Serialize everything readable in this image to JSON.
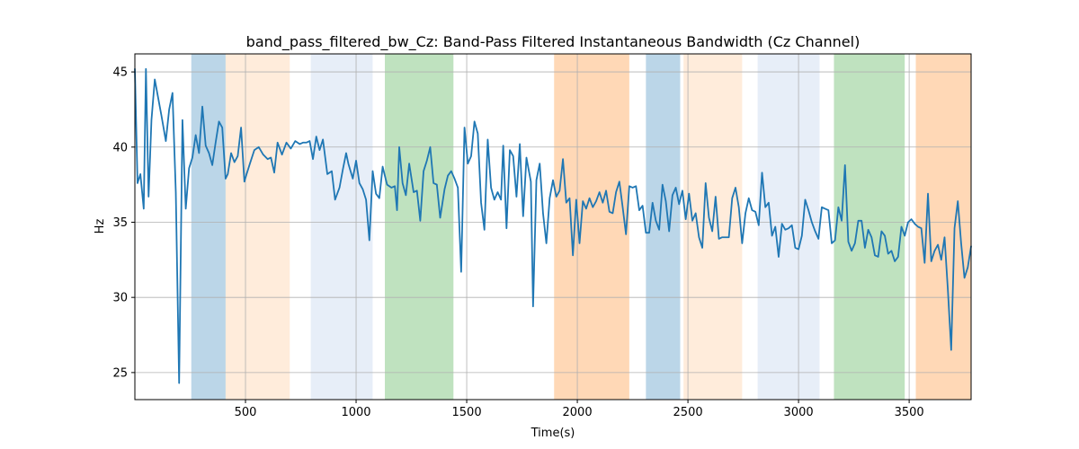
{
  "chart_data": {
    "type": "line",
    "title": "band_pass_filtered_bw_Cz: Band-Pass Filtered Instantaneous Bandwidth (Cz Channel)",
    "xlabel": "Time(s)",
    "ylabel": "Hz",
    "xlim": [
      0,
      3780
    ],
    "ylim": [
      23.2,
      46.2
    ],
    "xticks": [
      500,
      1000,
      1500,
      2000,
      2500,
      3000,
      3500
    ],
    "yticks": [
      25,
      30,
      35,
      40,
      45
    ],
    "grid": true,
    "line_color": "#1f77b4",
    "bands": [
      {
        "start": 255,
        "end": 410,
        "color": "#1f77b4",
        "alpha": 0.3
      },
      {
        "start": 410,
        "end": 700,
        "color": "#ff7f0e",
        "alpha": 0.15
      },
      {
        "start": 795,
        "end": 1075,
        "color": "#aec7e8",
        "alpha": 0.3
      },
      {
        "start": 1130,
        "end": 1440,
        "color": "#2ca02c",
        "alpha": 0.3
      },
      {
        "start": 1895,
        "end": 2235,
        "color": "#ff7f0e",
        "alpha": 0.3
      },
      {
        "start": 2310,
        "end": 2465,
        "color": "#1f77b4",
        "alpha": 0.3
      },
      {
        "start": 2480,
        "end": 2745,
        "color": "#ff7f0e",
        "alpha": 0.15
      },
      {
        "start": 2815,
        "end": 3095,
        "color": "#aec7e8",
        "alpha": 0.3
      },
      {
        "start": 3160,
        "end": 3480,
        "color": "#2ca02c",
        "alpha": 0.3
      },
      {
        "start": 3530,
        "end": 3780,
        "color": "#ff7f0e",
        "alpha": 0.3
      }
    ],
    "series": [
      {
        "x": [
          0,
          12,
          25,
          40,
          50,
          62,
          75,
          90,
          105,
          120,
          140,
          155,
          170,
          185,
          200,
          215,
          230,
          245,
          260,
          275,
          290,
          305,
          320,
          335,
          350,
          365,
          380,
          395,
          410,
          420,
          435,
          450,
          465,
          480,
          495,
          505,
          520,
          540,
          560,
          580,
          600,
          615,
          630,
          645,
          665,
          685,
          705,
          725,
          745,
          760,
          775,
          790,
          805,
          820,
          835,
          850,
          870,
          890,
          905,
          925,
          940,
          955,
          965,
          975,
          985,
          1000,
          1015,
          1030,
          1045,
          1060,
          1075,
          1090,
          1105,
          1120,
          1140,
          1160,
          1175,
          1185,
          1195,
          1210,
          1225,
          1240,
          1260,
          1275,
          1290,
          1305,
          1320,
          1335,
          1350,
          1365,
          1380,
          1400,
          1415,
          1430,
          1445,
          1460,
          1475,
          1490,
          1505,
          1520,
          1535,
          1550,
          1565,
          1580,
          1595,
          1610,
          1625,
          1640,
          1655,
          1665,
          1680,
          1695,
          1710,
          1725,
          1740,
          1755,
          1770,
          1790,
          1800,
          1815,
          1830,
          1845,
          1860,
          1875,
          1890,
          1905,
          1920,
          1935,
          1950,
          1965,
          1980,
          1995,
          2010,
          2025,
          2040,
          2055,
          2070,
          2085,
          2100,
          2115,
          2130,
          2145,
          2160,
          2175,
          2190,
          2205,
          2220,
          2235,
          2250,
          2265,
          2280,
          2295,
          2310,
          2325,
          2340,
          2355,
          2370,
          2385,
          2400,
          2415,
          2430,
          2445,
          2460,
          2475,
          2490,
          2505,
          2520,
          2535,
          2550,
          2565,
          2580,
          2595,
          2610,
          2625,
          2640,
          2655,
          2670,
          2685,
          2700,
          2715,
          2730,
          2745,
          2760,
          2775,
          2790,
          2805,
          2820,
          2835,
          2850,
          2865,
          2880,
          2895,
          2910,
          2925,
          2940,
          2955,
          2970,
          2985,
          3000,
          3015,
          3030,
          3045,
          3060,
          3075,
          3090,
          3105,
          3120,
          3135,
          3150,
          3165,
          3180,
          3195,
          3210,
          3225,
          3240,
          3255,
          3270,
          3285,
          3300,
          3315,
          3330,
          3345,
          3360,
          3375,
          3390,
          3405,
          3420,
          3435,
          3450,
          3465,
          3480,
          3495,
          3510,
          3525,
          3540,
          3555,
          3570,
          3585,
          3600,
          3615,
          3630,
          3645,
          3660,
          3675,
          3690,
          3705,
          3720,
          3735,
          3750,
          3765,
          3780
        ],
        "y": [
          45.2,
          37.6,
          38.2,
          35.9,
          45.2,
          36.7,
          41.8,
          44.5,
          43.3,
          42.1,
          40.4,
          42.5,
          43.6,
          37.0,
          24.3,
          41.8,
          35.9,
          38.6,
          39.3,
          40.8,
          39.6,
          42.7,
          40.1,
          39.6,
          38.8,
          40.3,
          41.7,
          41.3,
          37.9,
          38.2,
          39.6,
          39.0,
          39.4,
          41.3,
          37.7,
          38.2,
          38.9,
          39.8,
          40.0,
          39.5,
          39.2,
          39.3,
          38.3,
          40.3,
          39.5,
          40.3,
          39.9,
          40.4,
          40.2,
          40.3,
          40.3,
          40.4,
          39.2,
          40.7,
          39.8,
          40.5,
          38.2,
          38.4,
          36.5,
          37.3,
          38.5,
          39.6,
          38.9,
          38.4,
          37.9,
          39.1,
          37.6,
          37.2,
          36.5,
          33.8,
          38.4,
          36.9,
          36.6,
          38.7,
          37.5,
          37.3,
          37.4,
          35.8,
          40.0,
          37.6,
          36.8,
          38.9,
          37.0,
          37.1,
          35.1,
          38.4,
          39.1,
          40.0,
          37.6,
          37.5,
          35.3,
          37.2,
          38.1,
          38.4,
          37.9,
          37.3,
          31.7,
          41.3,
          38.9,
          39.4,
          41.7,
          40.9,
          36.3,
          34.5,
          40.5,
          37.3,
          36.5,
          37.0,
          36.5,
          40.1,
          34.6,
          39.8,
          39.4,
          36.7,
          40.2,
          35.4,
          39.3,
          37.7,
          29.4,
          37.8,
          38.9,
          35.6,
          33.6,
          36.6,
          37.8,
          36.7,
          37.1,
          39.2,
          36.3,
          36.6,
          32.8,
          36.5,
          33.6,
          36.4,
          35.9,
          36.6,
          36.0,
          36.4,
          37.0,
          36.3,
          37.1,
          35.7,
          35.6,
          37.0,
          37.7,
          36.0,
          34.2,
          37.4,
          37.3,
          37.4,
          35.8,
          36.1,
          34.3,
          34.3,
          36.3,
          35.1,
          34.5,
          37.5,
          36.4,
          34.4,
          36.8,
          37.3,
          36.2,
          37.1,
          35.2,
          36.9,
          35.1,
          35.6,
          34.0,
          33.3,
          37.6,
          35.3,
          34.4,
          36.7,
          33.9,
          34.0,
          34.0,
          34.0,
          36.6,
          37.3,
          36.0,
          33.6,
          35.6,
          36.6,
          35.8,
          35.7,
          34.8,
          38.3,
          36.0,
          36.3,
          34.1,
          34.7,
          32.7,
          34.9,
          34.5,
          34.6,
          34.8,
          33.3,
          33.2,
          34.1,
          36.5,
          35.8,
          35.0,
          34.4,
          33.9,
          36.0,
          35.9,
          35.8,
          33.6,
          33.8,
          36.0,
          35.1,
          38.8,
          33.7,
          33.1,
          33.6,
          35.1,
          35.1,
          33.3,
          34.5,
          34.0,
          32.8,
          32.7,
          34.4,
          34.1,
          32.9,
          33.1,
          32.4,
          32.7,
          34.7,
          34.1,
          35.0,
          35.2,
          34.9,
          34.7,
          34.6,
          32.3,
          36.9,
          32.4,
          33.1,
          33.5,
          32.5,
          34.0,
          30.5,
          26.5,
          34.6,
          36.4,
          33.6,
          31.3,
          32.0,
          33.4
        ]
      }
    ]
  }
}
